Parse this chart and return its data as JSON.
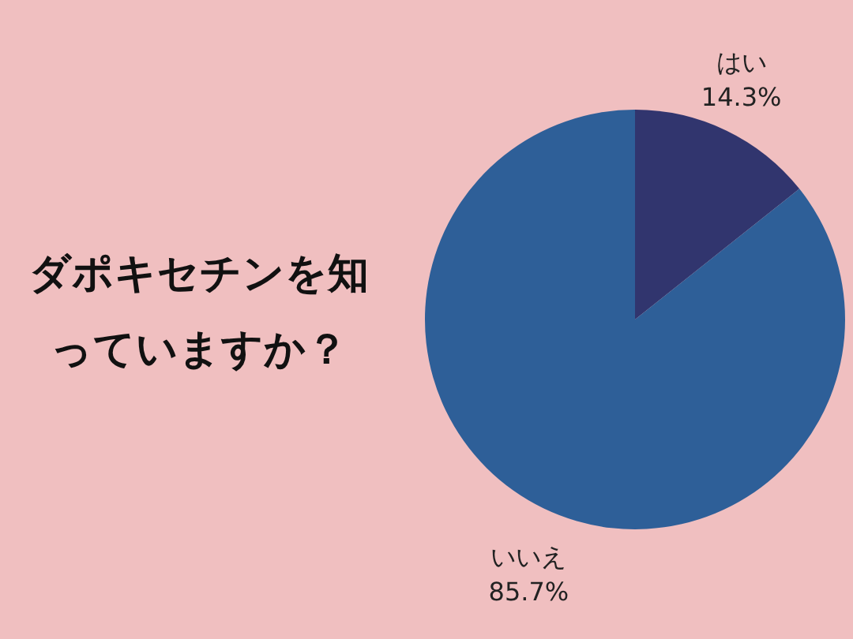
{
  "chart_data": {
    "type": "pie",
    "title": "ダポキセチンを知っていますか？",
    "categories": [
      "はい",
      "いいえ"
    ],
    "values": [
      14.3,
      85.7
    ],
    "colors": [
      "#31356e",
      "#2e5f98"
    ],
    "value_labels": [
      "14.3%",
      "85.7%"
    ],
    "legend": false
  }
}
